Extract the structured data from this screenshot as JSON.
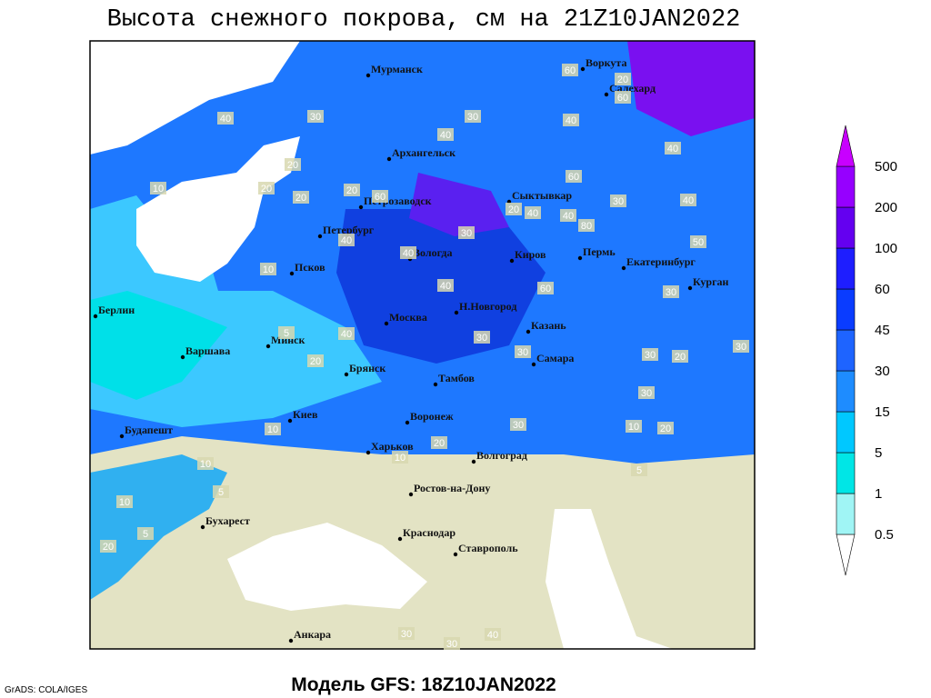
{
  "title": "Высота снежного покрова, см на 21Z10JAN2022",
  "footer": {
    "model": "Модель GFS: 18Z10JAN2022",
    "credit": "GrADS: COLA/IGES"
  },
  "map": {
    "cities": [
      "Мурманск",
      "Воркута",
      "Салехард",
      "Архангельск",
      "Петрозаводск",
      "Сыктывкар",
      "Петербург",
      "Вологда",
      "Киров",
      "Пермь",
      "Екатеринбург",
      "Псков",
      "Курган",
      "Берлин",
      "Москва",
      "Н.Новгород",
      "Казань",
      "Минск",
      "Варшава",
      "Брянск",
      "Тамбов",
      "Самара",
      "Киев",
      "Воронеж",
      "Будапешт",
      "Харьков",
      "Волгоград",
      "Ростов-на-Дону",
      "Бухарест",
      "Краснодар",
      "Ставрополь",
      "Анкара"
    ],
    "contour_labels": [
      60,
      20,
      60,
      30,
      40,
      40,
      40,
      40,
      30,
      50,
      30,
      60,
      80,
      40,
      40,
      20,
      60,
      20,
      20,
      20,
      20,
      10,
      40,
      30,
      40,
      40,
      40,
      20,
      5,
      30,
      30,
      60,
      30,
      20,
      30,
      30,
      20,
      10,
      30,
      10,
      10,
      20,
      10,
      5,
      10,
      5,
      20,
      5,
      30,
      30,
      40,
      10,
      40,
      30
    ]
  },
  "colorbar": {
    "levels": [
      0.5,
      1,
      5,
      15,
      30,
      45,
      60,
      100,
      200,
      500
    ],
    "colors": [
      "#ffffff",
      "#a0f5f5",
      "#00e6e6",
      "#00c8ff",
      "#1e8cff",
      "#1e64ff",
      "#0a3cff",
      "#1e1eff",
      "#6400f0",
      "#9600ff",
      "#c800ff"
    ]
  }
}
